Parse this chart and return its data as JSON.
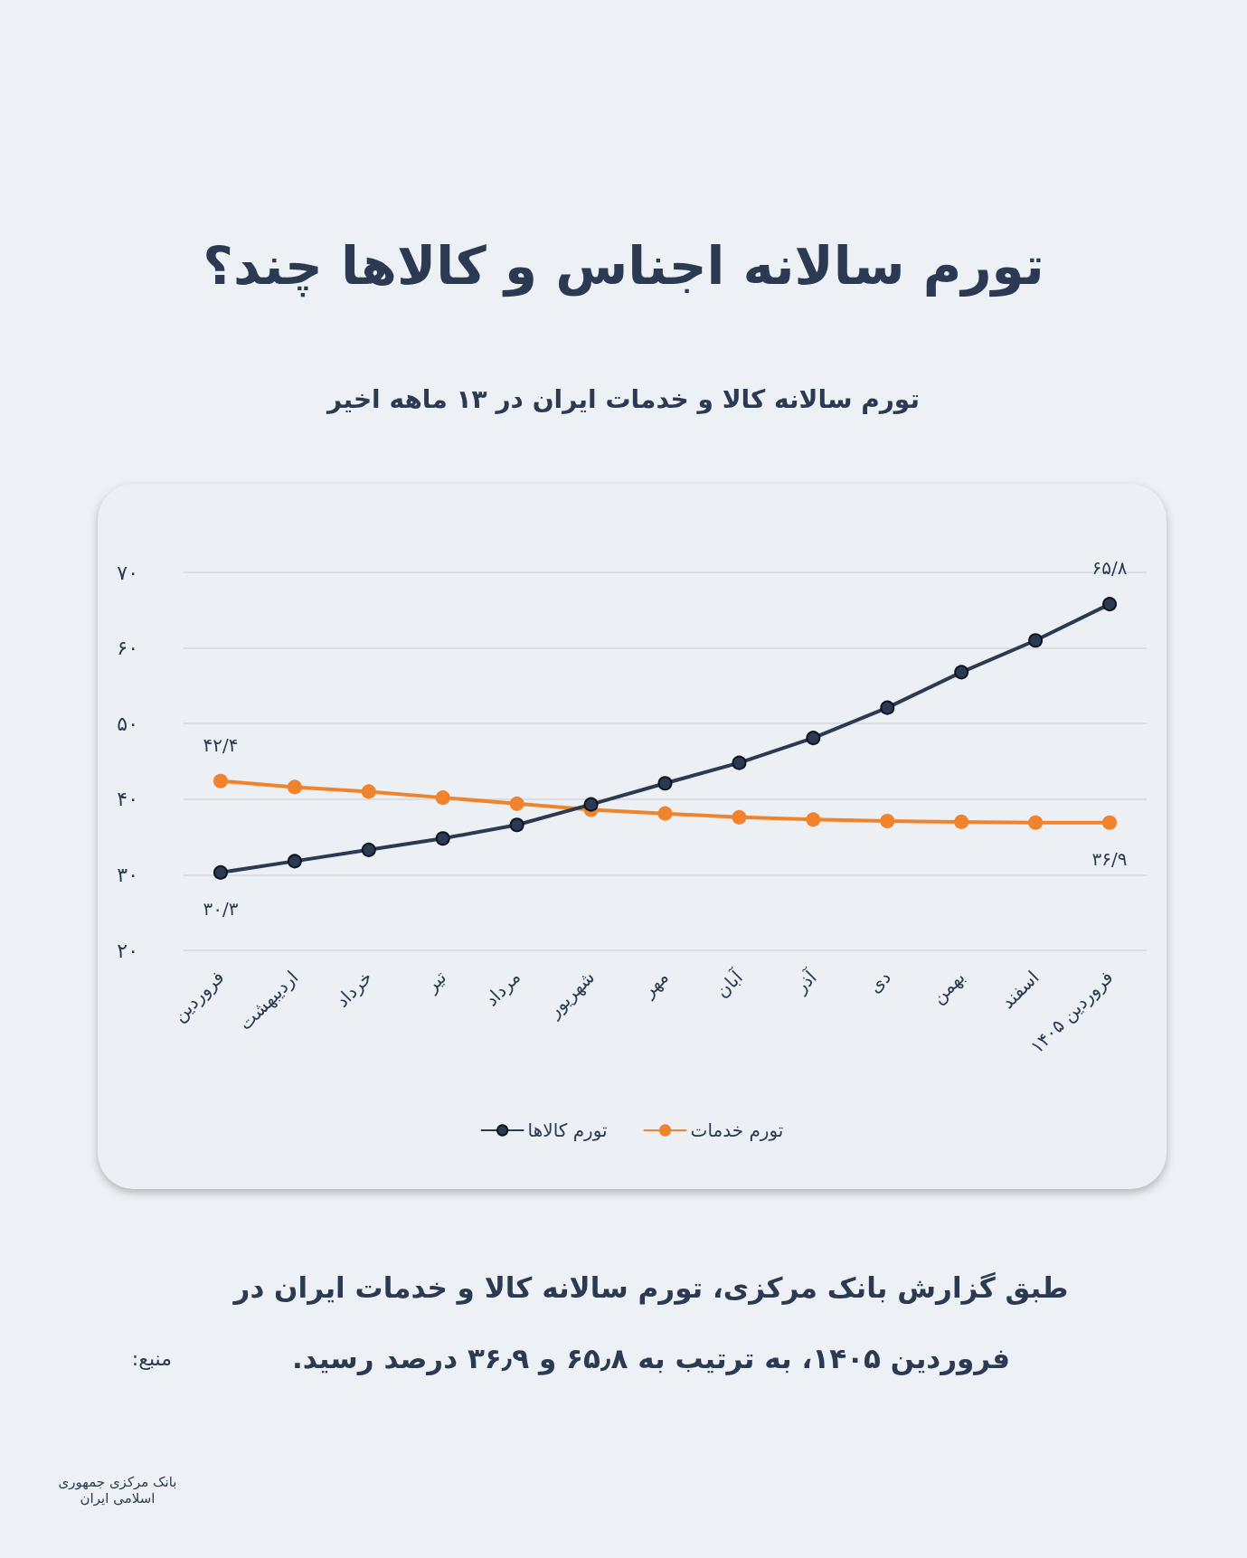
{
  "chart_data": {
    "type": "line",
    "title": "تورم سالانه اجناس و کالاها چند؟",
    "subtitle": "تورم سالانه کالا و خدمات ایران در ۱۳ ماهه اخیر",
    "categories": [
      "فروردین",
      "اردیبهشت",
      "خرداد",
      "تیر",
      "مرداد",
      "شهریور",
      "مهر",
      "آبان",
      "آذر",
      "دی",
      "بهمن",
      "اسفند",
      "فروردین ۱۴۰۵"
    ],
    "series": [
      {
        "name": "تورم کالاها",
        "color": "#2b3a52",
        "values": [
          30.3,
          31.8,
          33.3,
          34.8,
          36.6,
          39.3,
          42.1,
          44.8,
          48.1,
          52.1,
          56.8,
          61.0,
          65.8
        ],
        "value_labels": [
          "۳۰/۳",
          null,
          null,
          null,
          null,
          null,
          null,
          null,
          null,
          null,
          null,
          null,
          "۶۵/۸"
        ]
      },
      {
        "name": "تورم خدمات",
        "color": "#f0832e",
        "values": [
          42.4,
          41.6,
          41.0,
          40.2,
          39.4,
          38.6,
          38.1,
          37.6,
          37.3,
          37.1,
          37.0,
          36.9,
          36.9
        ],
        "value_labels": [
          "۴۲/۴",
          null,
          null,
          null,
          null,
          null,
          null,
          null,
          null,
          null,
          null,
          null,
          "۳۶/۹"
        ]
      }
    ],
    "ylim": [
      20,
      70
    ],
    "yticks": [
      {
        "value": 20,
        "label": "۲۰"
      },
      {
        "value": 30,
        "label": "۳۰"
      },
      {
        "value": 40,
        "label": "۴۰"
      },
      {
        "value": 50,
        "label": "۵۰"
      },
      {
        "value": 60,
        "label": "۶۰"
      },
      {
        "value": 70,
        "label": "۷۰"
      }
    ],
    "grid": "y",
    "legend": "bottom",
    "marker": "circle",
    "line_style": "solid",
    "annotations": [
      "طبق گزارش بانک مرکزی، تورم سالانه کالا و خدمات ایران در فروردین ۱۴۰۵، به ترتیب به ۶۵٫۸ و ۳۶٫۹ درصد رسید.",
      "منبع:",
      "بانک مرکزی جمهوری اسلامی ایران"
    ]
  }
}
